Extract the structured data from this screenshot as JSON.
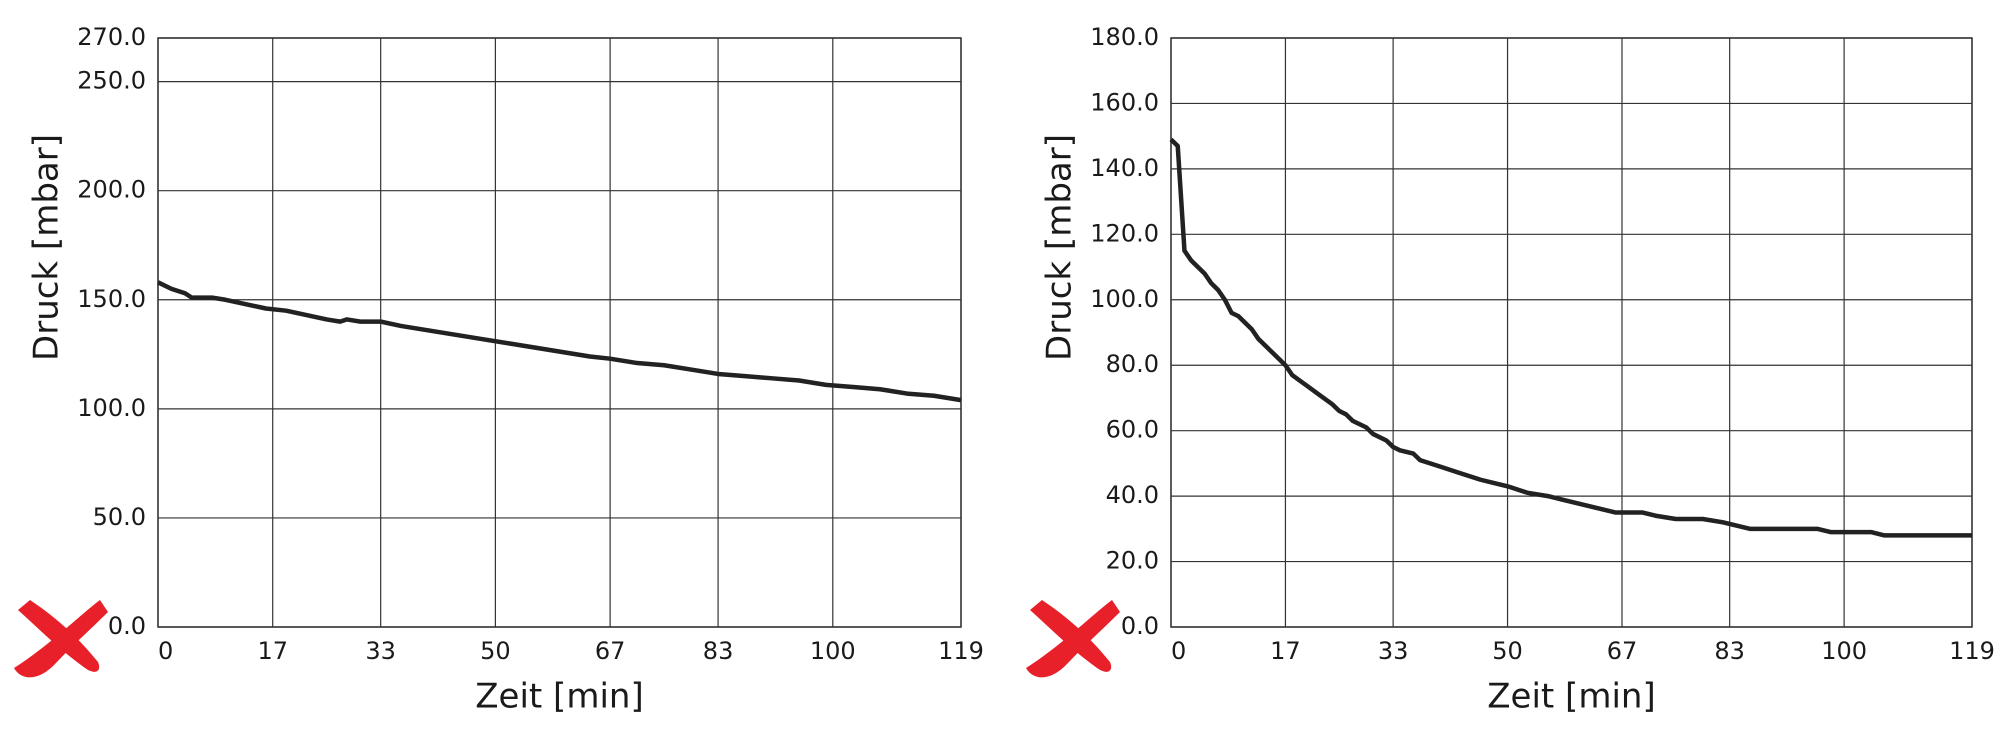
{
  "chart_data": [
    {
      "type": "line",
      "x_label": "Zeit [min]",
      "y_label": "Druck [mbar]",
      "xlim": [
        0,
        119
      ],
      "ylim": [
        0,
        270
      ],
      "grid": true,
      "xticks": [
        0,
        17,
        33,
        50,
        67,
        83,
        100,
        119
      ],
      "yticks": [
        {
          "value": 0,
          "label": "0.0"
        },
        {
          "value": 50,
          "label": "50.0"
        },
        {
          "value": 100,
          "label": "100.0"
        },
        {
          "value": 150,
          "label": "150.0"
        },
        {
          "value": 200,
          "label": "200.0"
        },
        {
          "value": 250,
          "label": "250.0"
        },
        {
          "value": 270,
          "label": "270.0"
        }
      ],
      "x": [
        0,
        2,
        4,
        5,
        8,
        10,
        13,
        16,
        19,
        22,
        25,
        27,
        28,
        30,
        33,
        36,
        40,
        44,
        48,
        52,
        56,
        60,
        64,
        67,
        71,
        75,
        79,
        83,
        87,
        91,
        95,
        99,
        103,
        107,
        111,
        115,
        119
      ],
      "series": [
        {
          "color": "#222222",
          "values": [
            158,
            155,
            153,
            151,
            151,
            150,
            148,
            146,
            145,
            143,
            141,
            140,
            141,
            140,
            140,
            138,
            136,
            134,
            132,
            130,
            128,
            126,
            124,
            123,
            121,
            120,
            118,
            116,
            115,
            114,
            113,
            111,
            110,
            109,
            107,
            106,
            104
          ]
        }
      ]
    },
    {
      "type": "line",
      "x_label": "Zeit [min]",
      "y_label": "Druck [mbar]",
      "xlim": [
        0,
        119
      ],
      "ylim": [
        0,
        180
      ],
      "grid": true,
      "xticks": [
        0,
        17,
        33,
        50,
        67,
        83,
        100,
        119
      ],
      "yticks": [
        {
          "value": 0,
          "label": "0.0"
        },
        {
          "value": 20,
          "label": "20.0"
        },
        {
          "value": 40,
          "label": "40.0"
        },
        {
          "value": 60,
          "label": "60.0"
        },
        {
          "value": 80,
          "label": "80.0"
        },
        {
          "value": 100,
          "label": "100.0"
        },
        {
          "value": 120,
          "label": "120.0"
        },
        {
          "value": 140,
          "label": "140.0"
        },
        {
          "value": 160,
          "label": "160.0"
        },
        {
          "value": 180,
          "label": "180.0"
        }
      ],
      "x": [
        0,
        1,
        2,
        3,
        5,
        6,
        7,
        8,
        9,
        10,
        12,
        13,
        15,
        17,
        18,
        20,
        22,
        24,
        25,
        26,
        27,
        29,
        30,
        32,
        33,
        34,
        36,
        37,
        40,
        43,
        46,
        48,
        50,
        53,
        56,
        58,
        60,
        62,
        64,
        66,
        70,
        72,
        75,
        79,
        82,
        84,
        86,
        96,
        98,
        104,
        106,
        119
      ],
      "series": [
        {
          "color": "#222222",
          "values": [
            149,
            147,
            115,
            112,
            108,
            105,
            103,
            100,
            96,
            95,
            91,
            88,
            84,
            80,
            77,
            74,
            71,
            68,
            66,
            65,
            63,
            61,
            59,
            57,
            55,
            54,
            53,
            51,
            49,
            47,
            45,
            44,
            43,
            41,
            40,
            39,
            38,
            37,
            36,
            35,
            35,
            34,
            33,
            33,
            32,
            31,
            30,
            30,
            29,
            29,
            28,
            28
          ]
        }
      ]
    }
  ]
}
